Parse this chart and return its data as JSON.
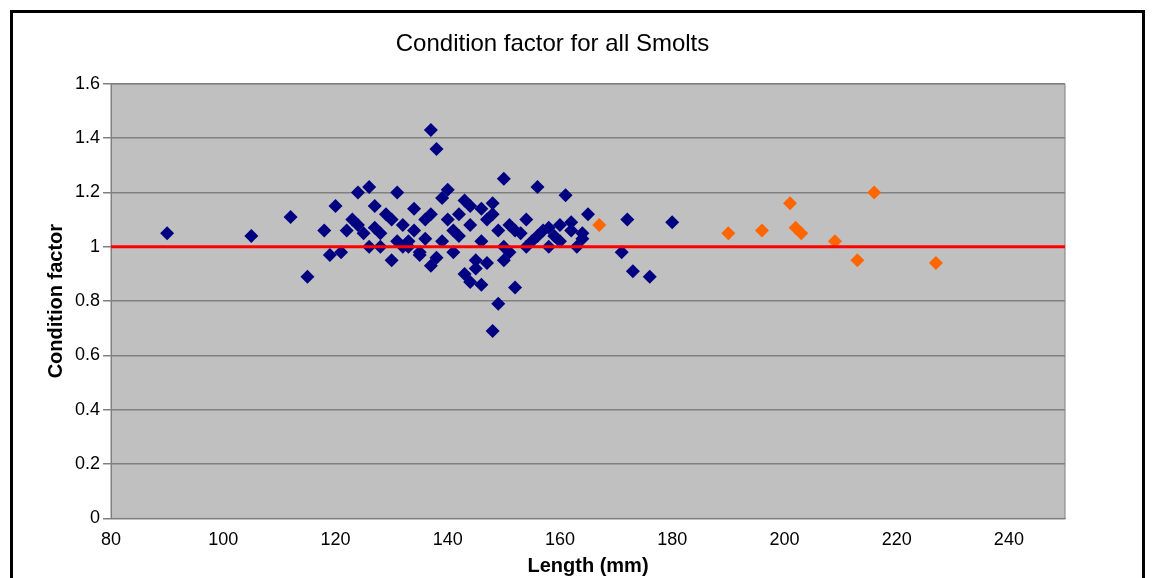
{
  "chart_data": {
    "type": "scatter",
    "title": "Condition factor for all Smolts",
    "xlabel": "Length (mm)",
    "ylabel": "Condition factor",
    "xlim": [
      80,
      250
    ],
    "xticks": [
      80,
      100,
      120,
      140,
      160,
      180,
      200,
      220,
      240
    ],
    "ylim": [
      0,
      1.6
    ],
    "yticks": [
      0,
      0.2,
      0.4,
      0.6,
      0.8,
      1,
      1.2,
      1.4,
      1.6
    ],
    "grid": "y",
    "legend": false,
    "marker": "diamond",
    "ref_lines": [
      {
        "axis": "y",
        "value": 1,
        "color": "#ff0000"
      }
    ],
    "series": [
      {
        "color": "#000080",
        "x": [
          90,
          105,
          112,
          115,
          118,
          119,
          120,
          121,
          122,
          124,
          126,
          137,
          138,
          140,
          146,
          148,
          149,
          150,
          152,
          156,
          161,
          165,
          171,
          172,
          173,
          176,
          180,
          123,
          125,
          127,
          128,
          129,
          130,
          131,
          132,
          133,
          134,
          135,
          136,
          137,
          139,
          141,
          142,
          143,
          144,
          145,
          147,
          148,
          150,
          151,
          153,
          154,
          155,
          157,
          158,
          159,
          160,
          162,
          163,
          164,
          124,
          126,
          128,
          130,
          132,
          134,
          136,
          138,
          140,
          142,
          144,
          146,
          148,
          150,
          152,
          154,
          156,
          158,
          160,
          162,
          164,
          127,
          131,
          135,
          139,
          143,
          145,
          147,
          149,
          151,
          133,
          137,
          141,
          144,
          146
        ],
        "values": [
          1.05,
          1.04,
          1.11,
          0.89,
          1.06,
          0.97,
          1.15,
          0.98,
          1.06,
          1.2,
          1.22,
          1.43,
          1.36,
          1.21,
          0.86,
          0.69,
          0.79,
          1.25,
          0.85,
          1.22,
          1.19,
          1.12,
          0.98,
          1.1,
          0.91,
          0.89,
          1.09,
          1.1,
          1.05,
          1.15,
          1.0,
          1.12,
          0.95,
          1.2,
          1.08,
          1.02,
          1.14,
          0.97,
          1.1,
          0.93,
          1.18,
          1.06,
          1.12,
          0.9,
          1.15,
          0.95,
          1.1,
          1.16,
          1.0,
          1.08,
          1.05,
          1.1,
          1.02,
          1.06,
          1.0,
          1.04,
          1.08,
          1.06,
          1.0,
          1.05,
          1.08,
          1.0,
          1.05,
          1.1,
          1.0,
          1.06,
          1.03,
          0.96,
          1.1,
          1.04,
          1.08,
          1.02,
          1.12,
          0.95,
          1.06,
          1.0,
          1.04,
          1.07,
          1.02,
          1.09,
          1.03,
          1.07,
          1.02,
          0.98,
          1.02,
          1.17,
          0.92,
          0.94,
          1.06,
          0.98,
          1.0,
          1.12,
          0.98,
          0.87,
          1.14
        ]
      },
      {
        "color": "#ff6600",
        "x": [
          167,
          190,
          196,
          201,
          202,
          203,
          209,
          213,
          216,
          227
        ],
        "values": [
          1.08,
          1.05,
          1.06,
          1.16,
          1.07,
          1.05,
          1.02,
          0.95,
          1.2,
          0.94
        ]
      }
    ]
  }
}
